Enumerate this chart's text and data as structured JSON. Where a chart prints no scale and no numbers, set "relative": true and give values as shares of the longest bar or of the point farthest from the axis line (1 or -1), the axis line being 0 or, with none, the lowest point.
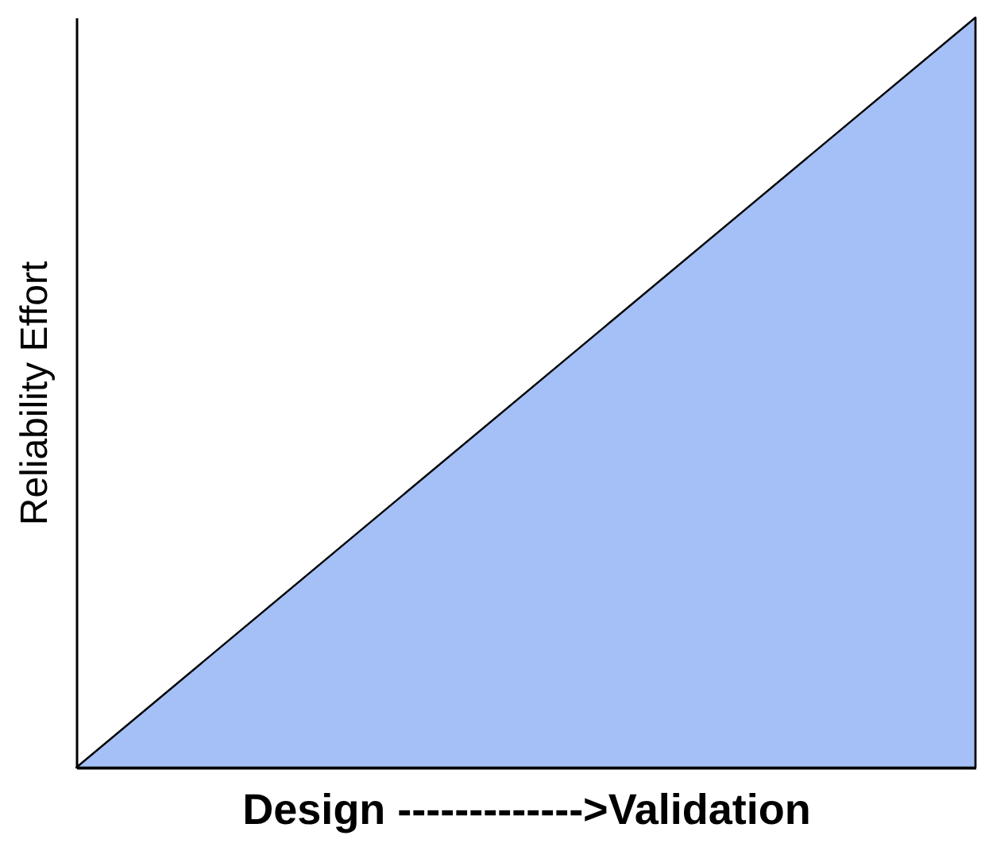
{
  "chart_data": {
    "type": "area",
    "relative": true,
    "xlabel": "Design ------------->Validation",
    "ylabel": "Reliability Effort",
    "categories": [
      null,
      null
    ],
    "series": [
      {
        "color": "#5b8def",
        "values": [
          0,
          1
        ]
      }
    ],
    "grid": false,
    "tick_labels": false
  }
}
